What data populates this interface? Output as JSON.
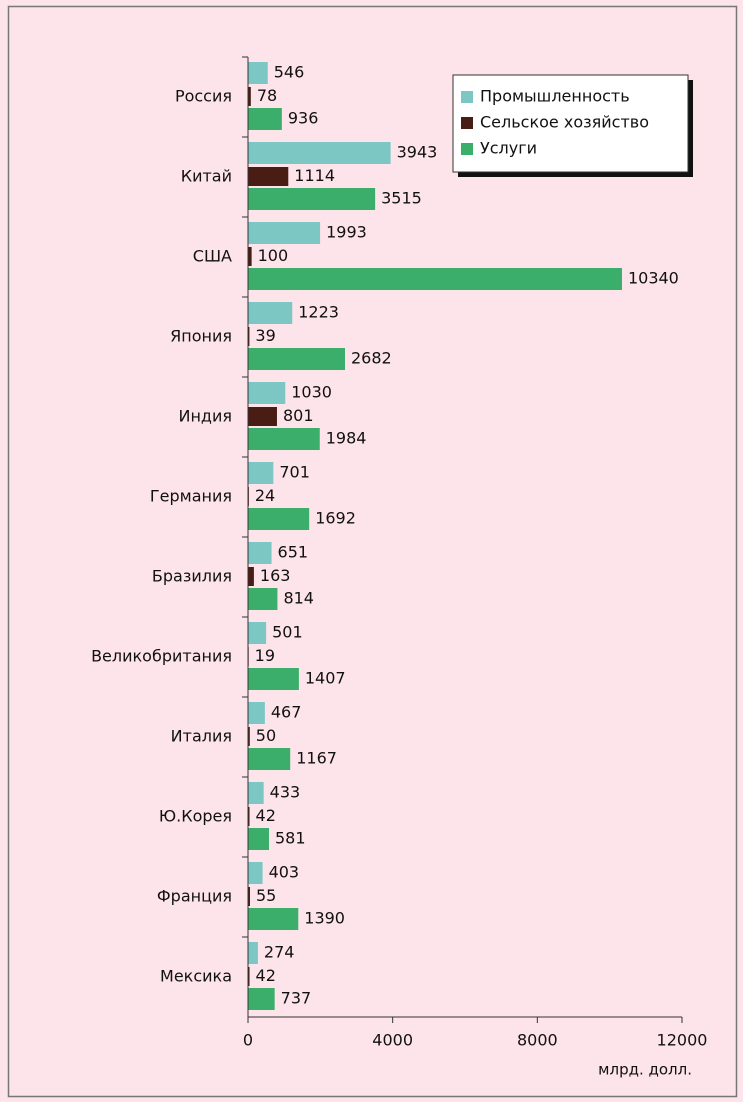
{
  "chart_data": {
    "type": "barh",
    "categories": [
      "Россия",
      "Китай",
      "США",
      "Япония",
      "Индия",
      "Германия",
      "Бразилия",
      "Великобритания",
      "Италия",
      "Ю.Корея",
      "Франция",
      "Мексика"
    ],
    "series": [
      {
        "name": "Промышленность",
        "color": "#7cc7c4",
        "values": [
          546,
          3943,
          1993,
          1223,
          1030,
          701,
          651,
          501,
          467,
          433,
          403,
          274
        ]
      },
      {
        "name": "Сельское хозяйство",
        "color": "#4a1d14",
        "values": [
          78,
          1114,
          100,
          39,
          801,
          24,
          163,
          19,
          50,
          42,
          55,
          42
        ]
      },
      {
        "name": "Услуги",
        "color": "#3cae6b",
        "values": [
          936,
          3515,
          10340,
          2682,
          1984,
          1692,
          814,
          1407,
          1167,
          581,
          1390,
          737
        ]
      }
    ],
    "xlim": [
      0,
      12000
    ],
    "xticks": [
      0,
      4000,
      8000,
      12000
    ],
    "x_label": "млрд. долл.",
    "legend": "top-right"
  }
}
